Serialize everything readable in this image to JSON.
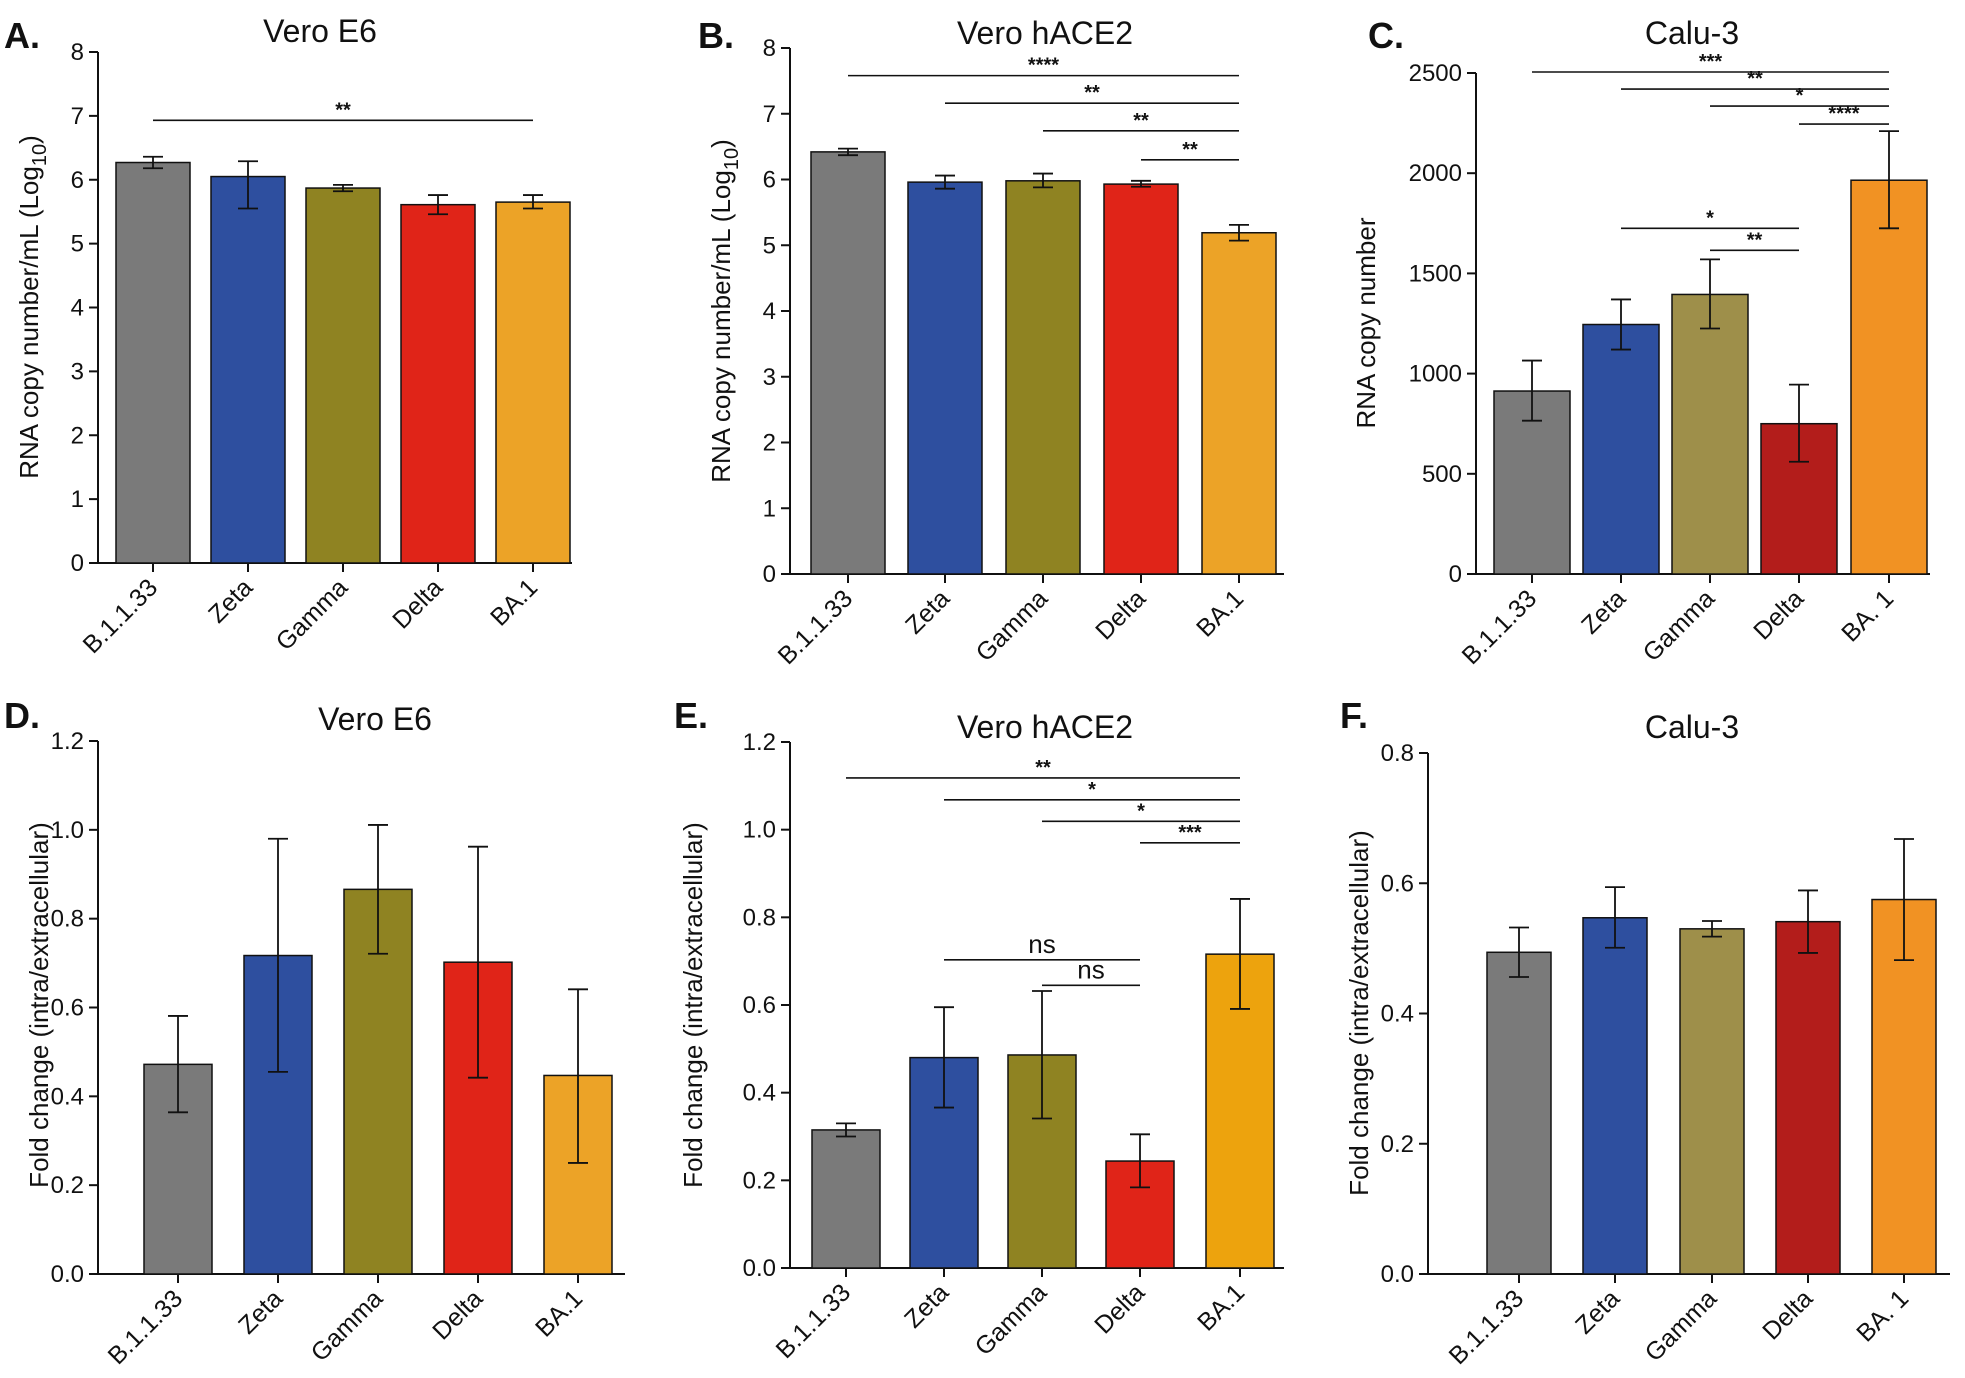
{
  "colors": {
    "grey": "#7a7a7a",
    "blue": "#2e4f9f",
    "olive": "#8f8322",
    "red": "#e02418",
    "orange": "#eca327",
    "darkred": "#b31d1b",
    "khaki": "#9e8f4a",
    "orange2": "#f19223",
    "orange3": "#eda30d"
  },
  "chart_data": [
    {
      "panel": "A.",
      "type": "bar",
      "title": "Vero E6",
      "xlabel": "",
      "ylabel_main": "RNA copy number/mL (Log",
      "ylabel_sub": "10",
      "ylabel_end": ")",
      "ylim": [
        0,
        8
      ],
      "yticks": [
        "0",
        "1",
        "2",
        "3",
        "4",
        "5",
        "6",
        "7",
        "8"
      ],
      "categories": [
        "B.1.1.33",
        "Zeta",
        "Gamma",
        "Delta",
        "BA.1"
      ],
      "values": [
        6.27,
        6.05,
        5.87,
        5.61,
        5.65
      ],
      "errors": [
        [
          6.18,
          6.36
        ],
        [
          5.55,
          6.29
        ],
        [
          5.82,
          5.92
        ],
        [
          5.46,
          5.76
        ],
        [
          5.55,
          5.76
        ]
      ],
      "bar_colors": [
        "grey",
        "blue",
        "olive",
        "red",
        "orange"
      ],
      "significance": [
        {
          "from": 0,
          "to": 4,
          "y": 6.93,
          "label": "**"
        }
      ]
    },
    {
      "panel": "B.",
      "type": "bar",
      "title": "Vero hACE2",
      "xlabel": "",
      "ylabel_main": "RNA copy number/mL (Log",
      "ylabel_sub": "10",
      "ylabel_end": ")",
      "ylim": [
        0,
        8
      ],
      "yticks": [
        "0",
        "1",
        "2",
        "3",
        "4",
        "5",
        "6",
        "7",
        "8"
      ],
      "categories": [
        "B.1.1.33",
        "Zeta",
        "Gamma",
        "Delta",
        "BA.1"
      ],
      "values": [
        6.42,
        5.96,
        5.98,
        5.93,
        5.19
      ],
      "errors": [
        [
          6.37,
          6.47
        ],
        [
          5.86,
          6.06
        ],
        [
          5.88,
          6.09
        ],
        [
          5.89,
          5.98
        ],
        [
          5.07,
          5.31
        ]
      ],
      "bar_colors": [
        "grey",
        "blue",
        "olive",
        "red",
        "orange"
      ],
      "significance": [
        {
          "from": 0,
          "to": 4,
          "y": 7.58,
          "label": "****"
        },
        {
          "from": 1,
          "to": 4,
          "y": 7.16,
          "label": "**"
        },
        {
          "from": 2,
          "to": 4,
          "y": 6.74,
          "label": "**"
        },
        {
          "from": 3,
          "to": 4,
          "y": 6.3,
          "label": "**"
        }
      ]
    },
    {
      "panel": "C.",
      "type": "bar",
      "title": "Calu-3",
      "xlabel": "",
      "ylabel_main": "RNA copy number",
      "ylabel_sub": "",
      "ylabel_end": "",
      "ylim": [
        0,
        2500
      ],
      "yticks": [
        "0",
        "500",
        "1000",
        "1500",
        "2000",
        "2500"
      ],
      "categories": [
        "B.1.1.33",
        "Zeta",
        "Gamma",
        "Delta",
        "BA. 1"
      ],
      "values": [
        913,
        1245,
        1395,
        750,
        1965
      ],
      "errors": [
        [
          765,
          1065
        ],
        [
          1120,
          1370
        ],
        [
          1225,
          1570
        ],
        [
          560,
          945
        ],
        [
          1725,
          2210
        ]
      ],
      "bar_colors": [
        "grey",
        "blue",
        "khaki",
        "darkred",
        "orange2"
      ],
      "significance": [
        {
          "from": 0,
          "to": 4,
          "y": 2505,
          "label": "***"
        },
        {
          "from": 1,
          "to": 4,
          "y": 2420,
          "label": "**"
        },
        {
          "from": 2,
          "to": 4,
          "y": 2335,
          "label": "*"
        },
        {
          "from": 3,
          "to": 4,
          "y": 2245,
          "label": "****"
        },
        {
          "from": 1,
          "to": 3,
          "y": 1725,
          "label": "*"
        },
        {
          "from": 2,
          "to": 3,
          "y": 1615,
          "label": "**"
        }
      ]
    },
    {
      "panel": "D.",
      "type": "bar",
      "title": "Vero E6",
      "xlabel": "",
      "ylabel_main": "Fold change (intra/extracellular)",
      "ylabel_sub": "",
      "ylabel_end": "",
      "ylim": [
        0,
        1.2
      ],
      "yticks": [
        "0.0",
        "0.2",
        "0.4",
        "0.6",
        "0.8",
        "1.0",
        "1.2"
      ],
      "categories": [
        "B.1.1.33",
        "Zeta",
        "Gamma",
        "Delta",
        "BA.1"
      ],
      "values": [
        0.472,
        0.717,
        0.866,
        0.702,
        0.447
      ],
      "errors": [
        [
          0.364,
          0.581
        ],
        [
          0.455,
          0.98
        ],
        [
          0.721,
          1.011
        ],
        [
          0.442,
          0.962
        ],
        [
          0.25,
          0.641
        ]
      ],
      "bar_colors": [
        "grey",
        "blue",
        "olive",
        "red",
        "orange"
      ],
      "significance": []
    },
    {
      "panel": "E.",
      "type": "bar",
      "title": "Vero hACE2",
      "xlabel": "",
      "ylabel_main": "Fold change (intra/extracellular)",
      "ylabel_sub": "",
      "ylabel_end": "",
      "ylim": [
        0,
        1.2
      ],
      "yticks": [
        "0.0",
        "0.2",
        "0.4",
        "0.6",
        "0.8",
        "1.0",
        "1.2"
      ],
      "categories": [
        "B.1.1.33",
        "Zeta",
        "Gamma",
        "Delta",
        "BA.1"
      ],
      "values": [
        0.315,
        0.48,
        0.486,
        0.244,
        0.716
      ],
      "errors": [
        [
          0.3,
          0.33
        ],
        [
          0.366,
          0.595
        ],
        [
          0.341,
          0.632
        ],
        [
          0.184,
          0.305
        ],
        [
          0.591,
          0.842
        ]
      ],
      "bar_colors": [
        "grey",
        "blue",
        "olive",
        "red",
        "orange3"
      ],
      "significance": [
        {
          "from": 0,
          "to": 4,
          "y": 1.118,
          "label": "**"
        },
        {
          "from": 1,
          "to": 4,
          "y": 1.068,
          "label": "*"
        },
        {
          "from": 2,
          "to": 4,
          "y": 1.019,
          "label": "*"
        },
        {
          "from": 3,
          "to": 4,
          "y": 0.97,
          "label": "***"
        },
        {
          "from": 1,
          "to": 3,
          "y": 0.703,
          "label": "ns"
        },
        {
          "from": 2,
          "to": 3,
          "y": 0.645,
          "label": "ns"
        }
      ]
    },
    {
      "panel": "F.",
      "type": "bar",
      "title": "Calu-3",
      "xlabel": "",
      "ylabel_main": "Fold change (intra/extracellular)",
      "ylabel_sub": "",
      "ylabel_end": "",
      "ylim": [
        0,
        0.8
      ],
      "yticks": [
        "0.0",
        "0.2",
        "0.4",
        "0.6",
        "0.8"
      ],
      "categories": [
        "B.1.1.33",
        "Zeta",
        "Gamma",
        "Delta",
        "BA. 1"
      ],
      "values": [
        0.494,
        0.547,
        0.53,
        0.541,
        0.575
      ],
      "errors": [
        [
          0.456,
          0.532
        ],
        [
          0.501,
          0.594
        ],
        [
          0.518,
          0.542
        ],
        [
          0.493,
          0.589
        ],
        [
          0.482,
          0.668
        ]
      ],
      "bar_colors": [
        "grey",
        "blue",
        "khaki",
        "darkred",
        "orange2"
      ],
      "significance": []
    }
  ]
}
